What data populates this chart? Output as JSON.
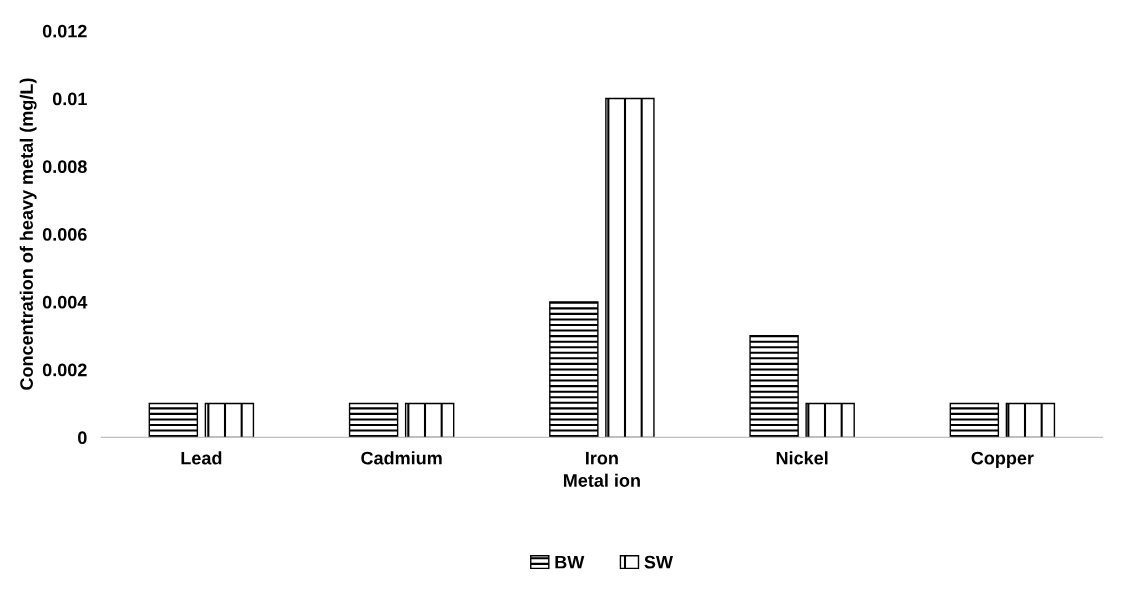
{
  "chart_data": {
    "type": "bar",
    "xlabel": "Metal ion",
    "ylabel": "Concentration of heavy metal (mg/L)",
    "categories": [
      "Lead",
      "Cadmium",
      "Iron",
      "Nickel",
      "Copper"
    ],
    "series": [
      {
        "name": "BW",
        "color": "#000000",
        "values": [
          0.001,
          0.001,
          0.004,
          0.003,
          0.001
        ]
      },
      {
        "name": "SW",
        "color": "#000000",
        "values": [
          0.001,
          0.001,
          0.01,
          0.001,
          0.001
        ]
      }
    ],
    "ylim": [
      0,
      0.012
    ],
    "yticks": [
      0,
      0.002,
      0.004,
      0.006,
      0.008,
      0.01,
      0.012
    ],
    "grid": false,
    "legend": "bottom"
  }
}
